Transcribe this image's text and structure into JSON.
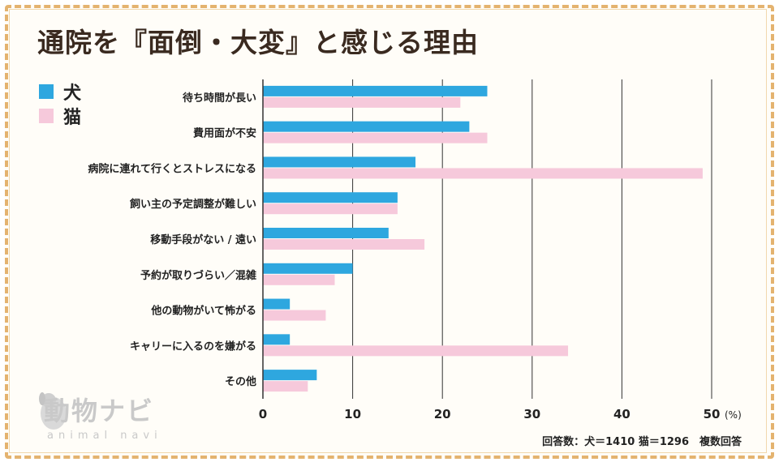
{
  "title": "通院を『面倒・大変』と感じる理由",
  "legend": [
    {
      "label": "犬",
      "color": "#2ea7df"
    },
    {
      "label": "猫",
      "color": "#f6c9db"
    }
  ],
  "footnote": "回答数：犬＝1410 猫＝1296　複数回答",
  "logo": {
    "name": "動物ナビ",
    "sub": "animal navi"
  },
  "chart_data": {
    "type": "bar",
    "orientation": "horizontal",
    "categories": [
      "待ち時間が長い",
      "費用面が不安",
      "病院に連れて行くとストレスになる",
      "飼い主の予定調整が難しい",
      "移動手段がない / 遠い",
      "予約が取りづらい／混雑",
      "他の動物がいて怖がる",
      "キャリーに入るのを嫌がる",
      "その他"
    ],
    "series": [
      {
        "name": "犬",
        "color": "#2ea7df",
        "values": [
          25,
          23,
          17,
          15,
          14,
          10,
          3,
          3,
          6
        ]
      },
      {
        "name": "猫",
        "color": "#f6c9db",
        "values": [
          22,
          25,
          49,
          15,
          18,
          8,
          7,
          34,
          5
        ]
      }
    ],
    "xlim": [
      0,
      50
    ],
    "xticks": [
      0,
      10,
      20,
      30,
      40,
      50
    ],
    "unit": "(%)",
    "grid": true,
    "legend_position": "top-left"
  }
}
